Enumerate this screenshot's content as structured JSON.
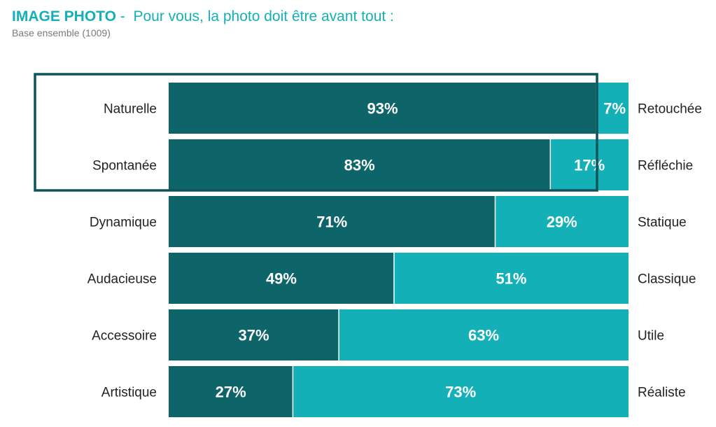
{
  "header": {
    "title_bold": "IMAGE PHOTO",
    "title_sep": " -  ",
    "title_rest": "Pour vous, la photo doit être avant tout :",
    "subtitle": "Base ensemble (1009)"
  },
  "colors": {
    "left_segment": "#0e6569",
    "right_segment": "#14b0b8",
    "highlight_border": "#0e5559",
    "title": "#14b0b8"
  },
  "chart_data": {
    "type": "bar",
    "orientation": "horizontal",
    "stacked": true,
    "percent_scale": [
      0,
      100
    ],
    "left_categories": [
      "Naturelle",
      "Spontanée",
      "Dynamique",
      "Audacieuse",
      "Accessoire",
      "Artistique"
    ],
    "right_categories": [
      "Retouchée",
      "Réfléchie",
      "Statique",
      "Classique",
      "Utile",
      "Réaliste"
    ],
    "series": [
      {
        "values": [
          93,
          83,
          71,
          49,
          37,
          27
        ],
        "labels": [
          "93%",
          "83%",
          "71%",
          "49%",
          "37%",
          "27%"
        ]
      },
      {
        "values": [
          7,
          17,
          29,
          51,
          63,
          73
        ],
        "labels": [
          "7%",
          "17%",
          "29%",
          "51%",
          "63%",
          "73%"
        ]
      }
    ],
    "highlighted_rows": [
      0,
      1
    ]
  }
}
